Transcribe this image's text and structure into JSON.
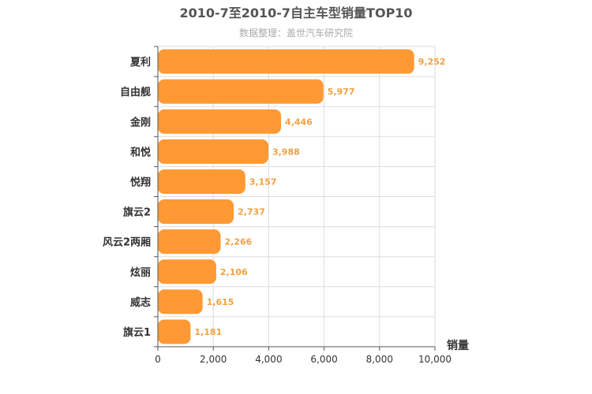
{
  "chart_data": {
    "type": "bar",
    "orientation": "horizontal",
    "title": "2010-7至2010-7自主车型销量TOP10",
    "subtitle": "数据整理：盖世汽车研究院",
    "categories": [
      "夏利",
      "自由舰",
      "金刚",
      "和悦",
      "悦翔",
      "旗云2",
      "风云2两厢",
      "炫丽",
      "威志",
      "旗云1"
    ],
    "values": [
      9252,
      5977,
      4446,
      3988,
      3157,
      2737,
      2266,
      2106,
      1615,
      1181
    ],
    "value_labels": [
      "9,252",
      "5,977",
      "4,446",
      "3,988",
      "3,157",
      "2,737",
      "2,266",
      "2,106",
      "1,615",
      "1,181"
    ],
    "xlabel": "销量",
    "xlim": [
      0,
      10000
    ],
    "x_ticks": [
      0,
      2000,
      4000,
      6000,
      8000,
      10000
    ],
    "x_tick_labels": [
      "0",
      "2,000",
      "4,000",
      "6,000",
      "8,000",
      "10,000"
    ],
    "grid": true,
    "colors": {
      "bar": "#ff9933",
      "data_label": "#f2a042",
      "grid": "#dddddd",
      "axis": "#555555"
    }
  }
}
